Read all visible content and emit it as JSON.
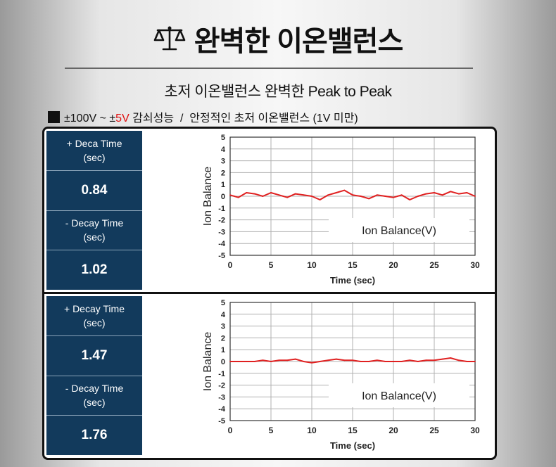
{
  "header": {
    "title": "완벽한 이온밸런스",
    "subtitle": "초저 이온밸런스 완벽한 Peak to Peak",
    "spec_part1": "±100V ~ ±",
    "spec_red": "5V",
    "spec_part2": " 감쇠성능  /  안정적인 초저 이온밸런스 (1V 미만)"
  },
  "panels": [
    {
      "decay_plus_label_1": "+ Deca Time",
      "decay_plus_label_2": "(sec)",
      "decay_plus_value": "0.84",
      "decay_minus_label_1": "- Decay Time",
      "decay_minus_label_2": "(sec)",
      "decay_minus_value": "1.02"
    },
    {
      "decay_plus_label_1": "+ Decay Time",
      "decay_plus_label_2": "(sec)",
      "decay_plus_value": "1.47",
      "decay_minus_label_1": "- Decay Time",
      "decay_minus_label_2": "(sec)",
      "decay_minus_value": "1.76"
    }
  ],
  "colors": {
    "navy": "#123a5c",
    "series": "#e02020",
    "spec_red": "#e01010"
  },
  "chart_data": [
    {
      "type": "line",
      "xlabel": "Time (sec)",
      "ylabel": "Ion Balance",
      "legend_text": "Ion Balance(V)",
      "legend_placement": "bottom-right",
      "xlim": [
        0,
        30
      ],
      "ylim": [
        -5,
        5
      ],
      "xticks": [
        0,
        5,
        10,
        15,
        20,
        25,
        30
      ],
      "yticks": [
        5,
        4,
        3,
        2,
        1,
        0,
        -1,
        -2,
        -3,
        -4,
        -5
      ],
      "grid": true,
      "series": [
        {
          "x": [
            0,
            1,
            2,
            3,
            4,
            5,
            6,
            7,
            8,
            9,
            10,
            11,
            12,
            13,
            14,
            15,
            16,
            17,
            18,
            19,
            20,
            21,
            22,
            23,
            24,
            25,
            26,
            27,
            28,
            29,
            30
          ],
          "values": [
            0.1,
            -0.1,
            0.3,
            0.2,
            0.0,
            0.3,
            0.1,
            -0.1,
            0.2,
            0.1,
            0.0,
            -0.3,
            0.1,
            0.3,
            0.5,
            0.1,
            0.0,
            -0.2,
            0.1,
            0.0,
            -0.1,
            0.1,
            -0.3,
            0.0,
            0.2,
            0.3,
            0.1,
            0.4,
            0.2,
            0.3,
            0.0
          ]
        }
      ]
    },
    {
      "type": "line",
      "xlabel": "Time (sec)",
      "ylabel": "Ion Balance",
      "legend_text": "Ion Balance(V)",
      "legend_placement": "bottom-right",
      "xlim": [
        0,
        30
      ],
      "ylim": [
        -5,
        5
      ],
      "xticks": [
        0,
        5,
        10,
        15,
        20,
        25,
        30
      ],
      "yticks": [
        5,
        4,
        3,
        2,
        1,
        0,
        -1,
        -2,
        -3,
        -4,
        -5
      ],
      "grid": true,
      "series": [
        {
          "x": [
            0,
            1,
            2,
            3,
            4,
            5,
            6,
            7,
            8,
            9,
            10,
            11,
            12,
            13,
            14,
            15,
            16,
            17,
            18,
            19,
            20,
            21,
            22,
            23,
            24,
            25,
            26,
            27,
            28,
            29,
            30
          ],
          "values": [
            0.0,
            0.0,
            0.0,
            0.0,
            0.1,
            0.0,
            0.1,
            0.1,
            0.2,
            0.0,
            -0.1,
            0.0,
            0.1,
            0.2,
            0.1,
            0.1,
            0.0,
            0.0,
            0.1,
            0.0,
            0.0,
            0.0,
            0.1,
            0.0,
            0.1,
            0.1,
            0.2,
            0.3,
            0.1,
            0.0,
            0.0
          ]
        }
      ]
    }
  ]
}
